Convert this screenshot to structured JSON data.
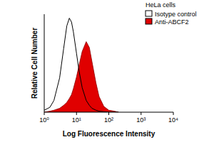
{
  "chart_data": {
    "type": "line",
    "title": "HeLa cells",
    "x_label": "Log Fluorescence Intensity",
    "y_label": "Relative Cell Number",
    "log": "x",
    "x": [
      1,
      1.5,
      2,
      3,
      4,
      5,
      6,
      7,
      8,
      10,
      12,
      15,
      20,
      25,
      30,
      40,
      50,
      70,
      100,
      150,
      200
    ],
    "series": [
      {
        "name": "Isotype control",
        "type": "line",
        "color": "#000000",
        "values": [
          2,
          5,
          12,
          35,
          65,
          88,
          96,
          92,
          82,
          60,
          42,
          25,
          12,
          7,
          4,
          2,
          1,
          0.5,
          0,
          0,
          0
        ]
      },
      {
        "name": "Anti-ABCF2",
        "type": "area",
        "color": "#e00000",
        "values": [
          0,
          1,
          2,
          4,
          7,
          10,
          14,
          18,
          24,
          36,
          48,
          62,
          72,
          66,
          52,
          30,
          16,
          6,
          2,
          1,
          0
        ]
      }
    ],
    "xlim": [
      1,
      10000
    ],
    "xticks": [
      {
        "value": 1,
        "label": "10⁰"
      },
      {
        "value": 10,
        "label": "10¹"
      },
      {
        "value": 100,
        "label": "10²"
      },
      {
        "value": 1000,
        "label": "10³"
      },
      {
        "value": 10000,
        "label": "10⁴"
      }
    ],
    "ylim": [
      0,
      100
    ],
    "tick_labels": "x",
    "legend": "upper right"
  }
}
